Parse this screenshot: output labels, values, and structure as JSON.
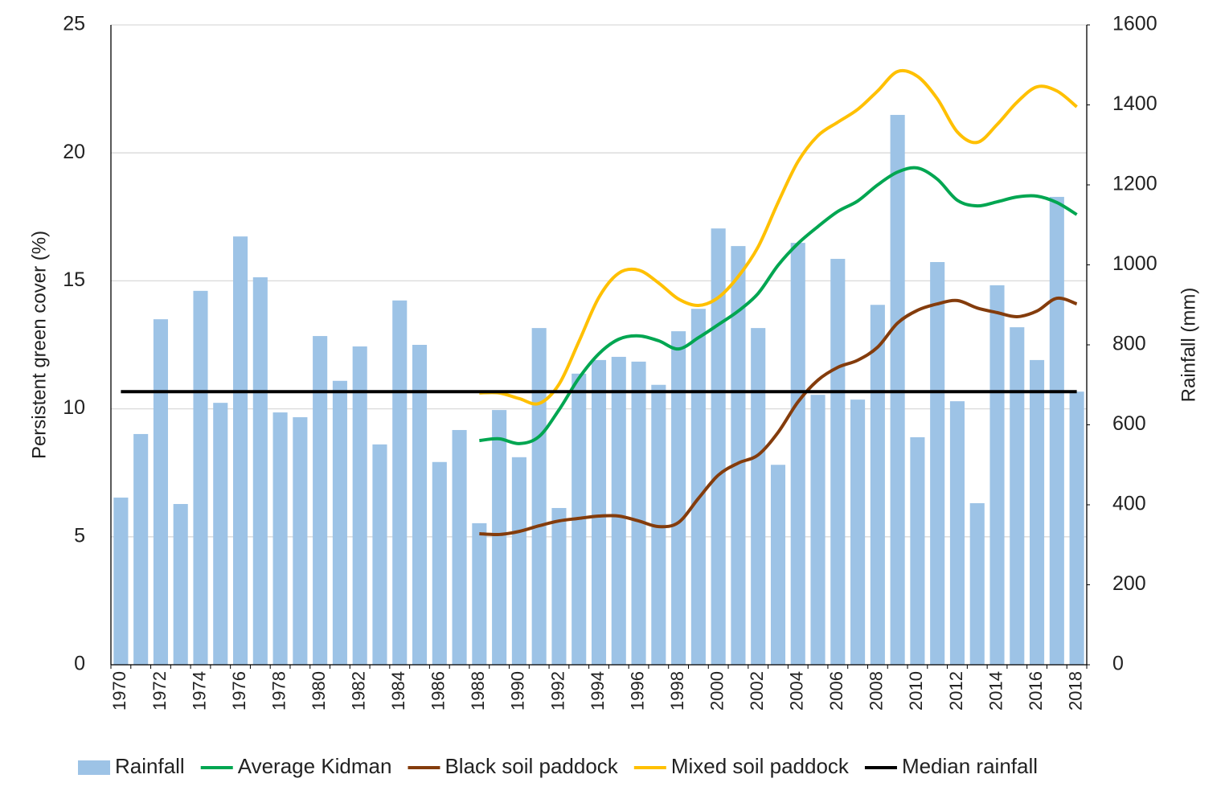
{
  "chart_data": {
    "type": "bar",
    "categories": [
      "1970",
      null,
      "1972",
      null,
      "1974",
      null,
      "1976",
      null,
      "1978",
      null,
      "1980",
      null,
      "1982",
      null,
      "1984",
      null,
      "1986",
      null,
      "1988",
      null,
      "1990",
      null,
      "1992",
      null,
      "1994",
      null,
      "1996",
      null,
      "1998",
      null,
      "2000",
      null,
      "2002",
      null,
      "2004",
      null,
      "2006",
      null,
      "2008",
      null,
      "2010",
      null,
      "2012",
      null,
      "2014",
      null,
      "2016",
      null,
      "2018"
    ],
    "y_label": "Persistent green cover (%)",
    "y2_label": "Rainfall (mm)",
    "ylim": [
      0,
      25
    ],
    "yticks": [
      0,
      5,
      10,
      15,
      20,
      25
    ],
    "y2lim": [
      0,
      1600
    ],
    "y2ticks": [
      0,
      200,
      400,
      600,
      800,
      1000,
      1200,
      1400,
      1600
    ],
    "grid": true,
    "legend": "bottom",
    "series": [
      {
        "name": "Rainfall",
        "type": "bar",
        "axis": "y2",
        "color": "#9dc3e6",
        "values": [
          418,
          577,
          864,
          402,
          935,
          655,
          1071,
          969,
          631,
          619,
          822,
          710,
          796,
          551,
          911,
          800,
          507,
          587,
          354,
          637,
          519,
          842,
          392,
          728,
          762,
          770,
          758,
          700,
          834,
          890,
          1091,
          1047,
          842,
          500,
          1055,
          675,
          1015,
          663,
          900,
          1375,
          569,
          1007,
          659,
          404,
          949,
          844,
          762,
          1170,
          683
        ]
      },
      {
        "name": "Average Kidman",
        "type": "line",
        "color": "#00a651",
        "values": [
          null,
          null,
          null,
          null,
          null,
          null,
          null,
          null,
          null,
          null,
          null,
          null,
          null,
          null,
          null,
          null,
          null,
          null,
          8.76,
          8.83,
          8.64,
          8.92,
          9.96,
          11.2,
          12.15,
          12.72,
          12.85,
          12.66,
          12.34,
          12.78,
          13.29,
          13.82,
          14.51,
          15.61,
          16.46,
          17.12,
          17.71,
          18.12,
          18.75,
          19.25,
          19.41,
          18.97,
          18.15,
          17.93,
          18.09,
          18.28,
          18.31,
          18.06,
          17.59
        ]
      },
      {
        "name": "Black soil paddock",
        "type": "line",
        "color": "#843c0c",
        "values": [
          null,
          null,
          null,
          null,
          null,
          null,
          null,
          null,
          null,
          null,
          null,
          null,
          null,
          null,
          null,
          null,
          null,
          null,
          5.12,
          5.09,
          5.21,
          5.43,
          5.62,
          5.72,
          5.81,
          5.81,
          5.62,
          5.4,
          5.56,
          6.5,
          7.41,
          7.88,
          8.2,
          9.08,
          10.27,
          11.12,
          11.62,
          11.9,
          12.41,
          13.35,
          13.85,
          14.1,
          14.23,
          13.94,
          13.76,
          13.6,
          13.82,
          14.32,
          14.1
        ]
      },
      {
        "name": "Mixed soil paddock",
        "type": "line",
        "color": "#ffc000",
        "values": [
          null,
          null,
          null,
          null,
          null,
          null,
          null,
          null,
          null,
          null,
          null,
          null,
          null,
          null,
          null,
          null,
          null,
          null,
          10.62,
          10.62,
          10.4,
          10.21,
          10.96,
          12.63,
          14.35,
          15.3,
          15.42,
          14.92,
          14.29,
          14.04,
          14.35,
          15.17,
          16.33,
          18.06,
          19.66,
          20.67,
          21.2,
          21.7,
          22.42,
          23.18,
          22.99,
          22.11,
          20.82,
          20.41,
          21.11,
          21.98,
          22.58,
          22.42,
          21.8
        ]
      },
      {
        "name": "Median rainfall",
        "type": "line",
        "axis": "y2",
        "color": "#000000",
        "values": [
          683,
          683,
          683,
          683,
          683,
          683,
          683,
          683,
          683,
          683,
          683,
          683,
          683,
          683,
          683,
          683,
          683,
          683,
          683,
          683,
          683,
          683,
          683,
          683,
          683,
          683,
          683,
          683,
          683,
          683,
          683,
          683,
          683,
          683,
          683,
          683,
          683,
          683,
          683,
          683,
          683,
          683,
          683,
          683,
          683,
          683,
          683,
          683,
          683
        ]
      }
    ]
  }
}
